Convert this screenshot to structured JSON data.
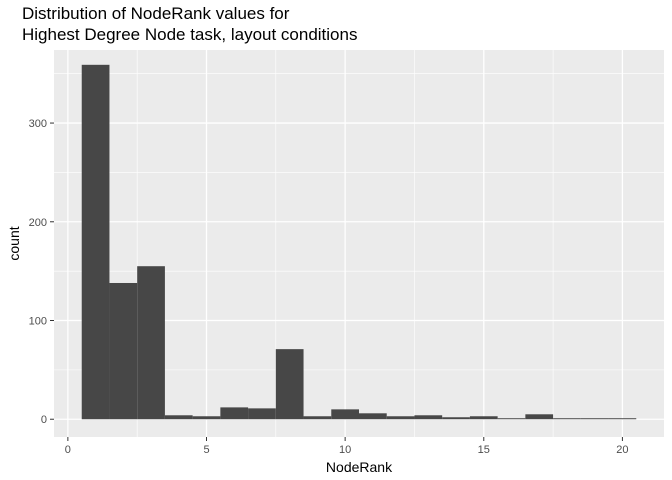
{
  "chart_data": {
    "type": "bar",
    "title_lines": [
      "Distribution of NodeRank values for",
      "Highest Degree Node task, layout conditions"
    ],
    "xlabel": "NodeRank",
    "ylabel": "count",
    "xlim": [
      -0.5,
      21.5
    ],
    "ylim": [
      -18,
      374
    ],
    "x_ticks": [
      0,
      5,
      10,
      15,
      20
    ],
    "y_ticks": [
      0,
      100,
      200,
      300
    ],
    "bin_width": 1,
    "grid": true,
    "legend": "none",
    "bins": [
      {
        "x": 1,
        "count": 359
      },
      {
        "x": 2,
        "count": 138
      },
      {
        "x": 3,
        "count": 155
      },
      {
        "x": 4,
        "count": 4
      },
      {
        "x": 5,
        "count": 3
      },
      {
        "x": 6,
        "count": 12
      },
      {
        "x": 7,
        "count": 11
      },
      {
        "x": 8,
        "count": 71
      },
      {
        "x": 9,
        "count": 3
      },
      {
        "x": 10,
        "count": 10
      },
      {
        "x": 11,
        "count": 6
      },
      {
        "x": 12,
        "count": 3
      },
      {
        "x": 13,
        "count": 4
      },
      {
        "x": 14,
        "count": 2
      },
      {
        "x": 15,
        "count": 3
      },
      {
        "x": 16,
        "count": 1
      },
      {
        "x": 17,
        "count": 5
      },
      {
        "x": 18,
        "count": 1
      },
      {
        "x": 19,
        "count": 1
      },
      {
        "x": 20,
        "count": 1
      }
    ],
    "colors": {
      "panel": "#ebebeb",
      "bar": "#474747",
      "grid_major": "#ffffff",
      "tick_text": "#4d4d4d"
    }
  }
}
